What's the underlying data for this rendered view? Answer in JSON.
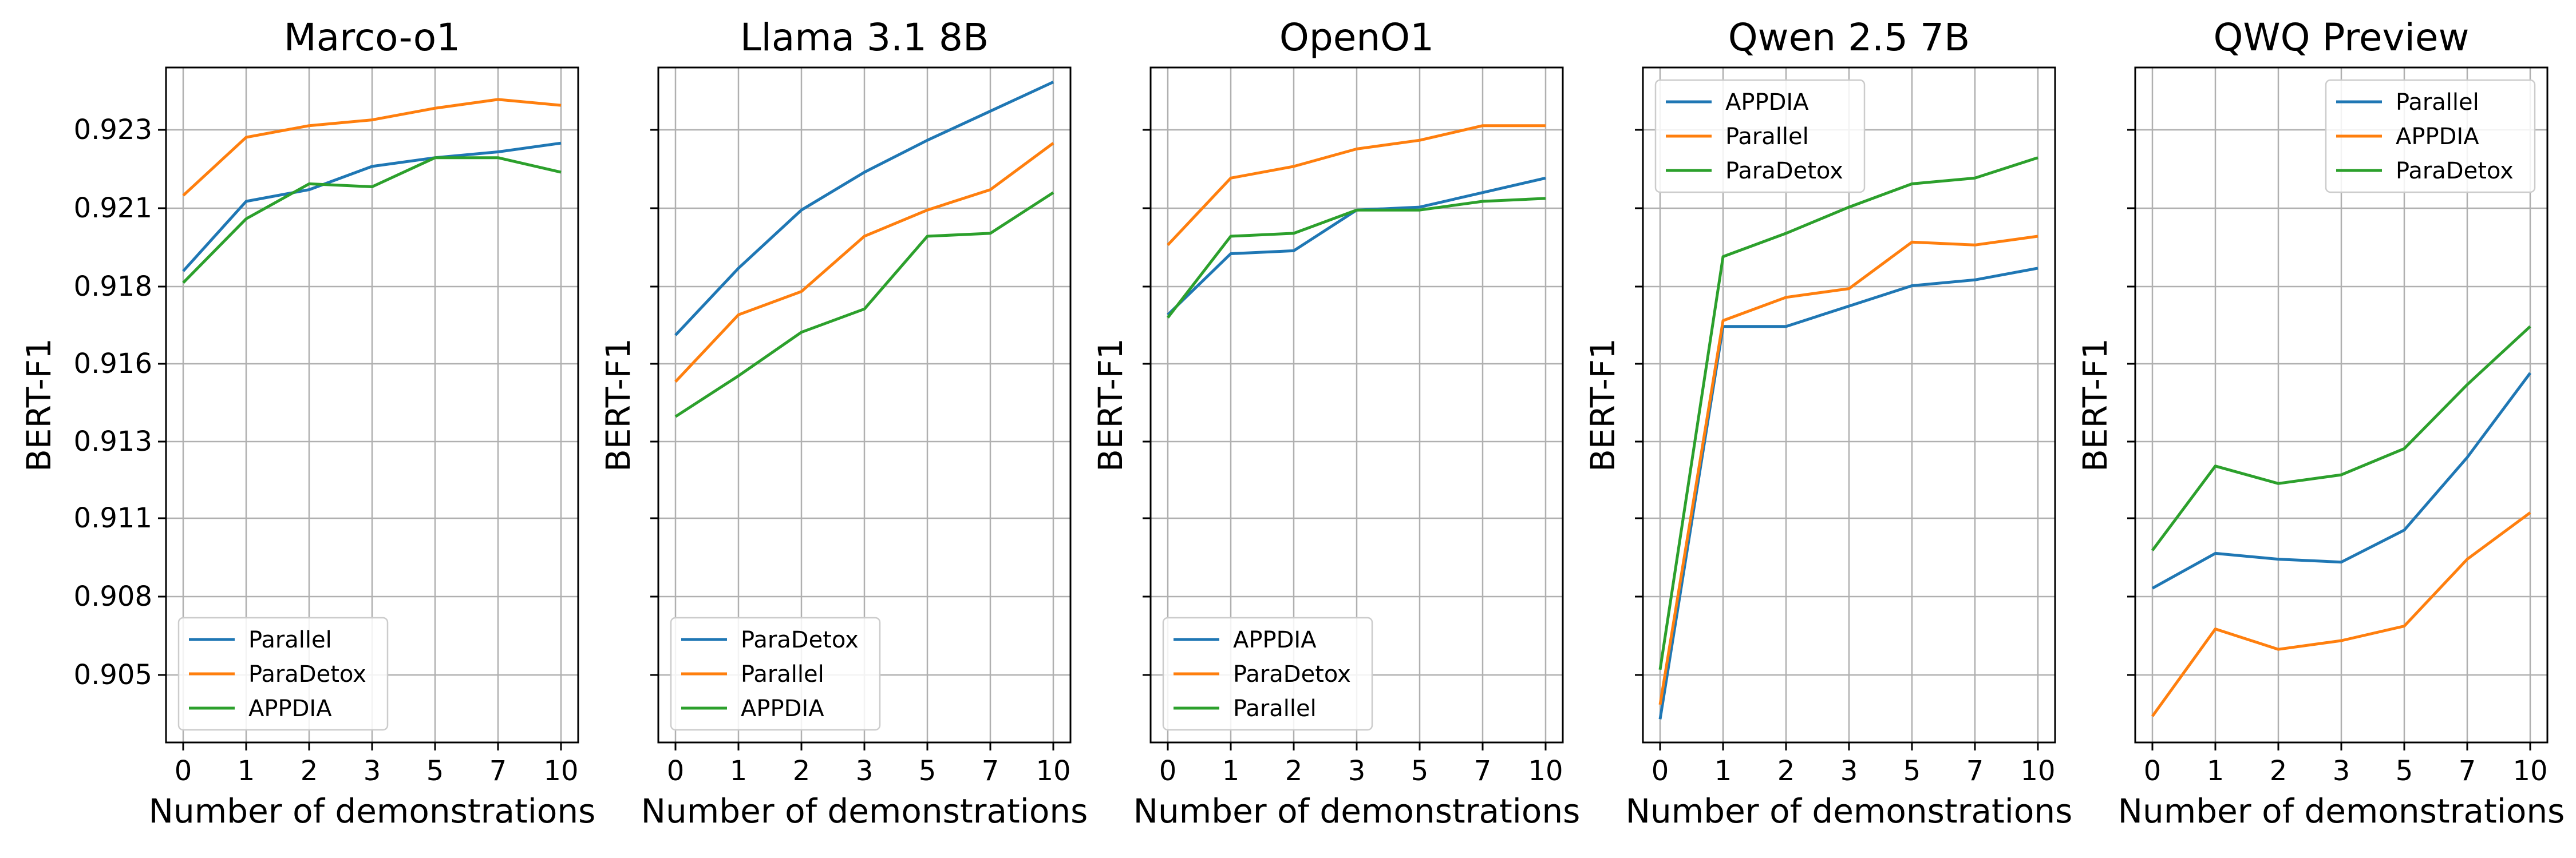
{
  "chart_data": [
    {
      "type": "line",
      "title": "Marco-o1",
      "xlabel": "Number of demonstrations",
      "ylabel": "BERT-F1",
      "categories": [
        "0",
        "1",
        "2",
        "3",
        "5",
        "7",
        "10"
      ],
      "yticks": [
        "0.905",
        "0.908",
        "0.911",
        "0.913",
        "0.916",
        "0.918",
        "0.921",
        "0.923"
      ],
      "ylim": [
        0.9025,
        0.9257
      ],
      "grid": true,
      "legend_position": "lower-left",
      "series": [
        {
          "name": "Parallel",
          "color": "#1f77b4",
          "values": [
            0.9187,
            0.9211,
            0.9215,
            0.9223,
            0.9226,
            0.9228,
            0.9231
          ]
        },
        {
          "name": "ParaDetox",
          "color": "#ff7f0e",
          "values": [
            0.9213,
            0.9233,
            0.9237,
            0.9239,
            0.9243,
            0.9246,
            0.9244
          ]
        },
        {
          "name": "APPDIA",
          "color": "#2ca02c",
          "values": [
            0.9183,
            0.9205,
            0.9217,
            0.9216,
            0.9226,
            0.9226,
            0.9221
          ]
        }
      ]
    },
    {
      "type": "line",
      "title": "Llama 3.1 8B",
      "xlabel": "Number of demonstrations",
      "ylabel": "BERT-F1",
      "categories": [
        "0",
        "1",
        "2",
        "3",
        "5",
        "7",
        "10"
      ],
      "ylim": [
        0.9025,
        0.9257
      ],
      "grid": true,
      "legend_position": "lower-left",
      "series": [
        {
          "name": "ParaDetox",
          "color": "#1f77b4",
          "values": [
            0.9165,
            0.9188,
            0.9208,
            0.9221,
            0.9232,
            0.9242,
            0.9252
          ]
        },
        {
          "name": "Parallel",
          "color": "#ff7f0e",
          "values": [
            0.9149,
            0.9172,
            0.918,
            0.9199,
            0.9208,
            0.9215,
            0.9231
          ]
        },
        {
          "name": "APPDIA",
          "color": "#2ca02c",
          "values": [
            0.9137,
            0.9151,
            0.9166,
            0.9174,
            0.9199,
            0.92,
            0.9214
          ]
        }
      ]
    },
    {
      "type": "line",
      "title": "OpenO1",
      "xlabel": "Number of demonstrations",
      "ylabel": "BERT-F1",
      "categories": [
        "0",
        "1",
        "2",
        "3",
        "5",
        "7",
        "10"
      ],
      "ylim": [
        0.9025,
        0.9257
      ],
      "grid": true,
      "legend_position": "lower-left",
      "series": [
        {
          "name": "APPDIA",
          "color": "#1f77b4",
          "values": [
            0.9172,
            0.9193,
            0.9194,
            0.9208,
            0.9209,
            0.9214,
            0.9219
          ]
        },
        {
          "name": "ParaDetox",
          "color": "#ff7f0e",
          "values": [
            0.9196,
            0.9219,
            0.9223,
            0.9229,
            0.9232,
            0.9237,
            0.9237
          ]
        },
        {
          "name": "Parallel",
          "color": "#2ca02c",
          "values": [
            0.9171,
            0.9199,
            0.92,
            0.9208,
            0.9208,
            0.9211,
            0.9212
          ]
        }
      ]
    },
    {
      "type": "line",
      "title": "Qwen 2.5 7B",
      "xlabel": "Number of demonstrations",
      "ylabel": "BERT-F1",
      "categories": [
        "0",
        "1",
        "2",
        "3",
        "5",
        "7",
        "10"
      ],
      "ylim": [
        0.9025,
        0.9257
      ],
      "grid": true,
      "legend_position": "upper-left",
      "series": [
        {
          "name": "APPDIA",
          "color": "#1f77b4",
          "values": [
            0.9033,
            0.9168,
            0.9168,
            0.9175,
            0.9182,
            0.9184,
            0.9188
          ]
        },
        {
          "name": "Parallel",
          "color": "#ff7f0e",
          "values": [
            0.9038,
            0.917,
            0.9178,
            0.9181,
            0.9197,
            0.9196,
            0.9199
          ]
        },
        {
          "name": "ParaDetox",
          "color": "#2ca02c",
          "values": [
            0.905,
            0.9192,
            0.92,
            0.9209,
            0.9217,
            0.9219,
            0.9226
          ]
        }
      ]
    },
    {
      "type": "line",
      "title": "QWQ Preview",
      "xlabel": "Number of demonstrations",
      "ylabel": "BERT-F1",
      "categories": [
        "0",
        "1",
        "2",
        "3",
        "5",
        "7",
        "10"
      ],
      "ylim": [
        0.9025,
        0.9257
      ],
      "grid": true,
      "legend_position": "upper-right",
      "series": [
        {
          "name": "Parallel",
          "color": "#1f77b4",
          "values": [
            0.9078,
            0.909,
            0.9088,
            0.9087,
            0.9098,
            0.9123,
            0.9152
          ]
        },
        {
          "name": "APPDIA",
          "color": "#ff7f0e",
          "values": [
            0.9034,
            0.9064,
            0.9057,
            0.906,
            0.9065,
            0.9088,
            0.9104
          ]
        },
        {
          "name": "ParaDetox",
          "color": "#2ca02c",
          "values": [
            0.9091,
            0.912,
            0.9114,
            0.9117,
            0.9126,
            0.9148,
            0.9168
          ]
        }
      ]
    }
  ]
}
